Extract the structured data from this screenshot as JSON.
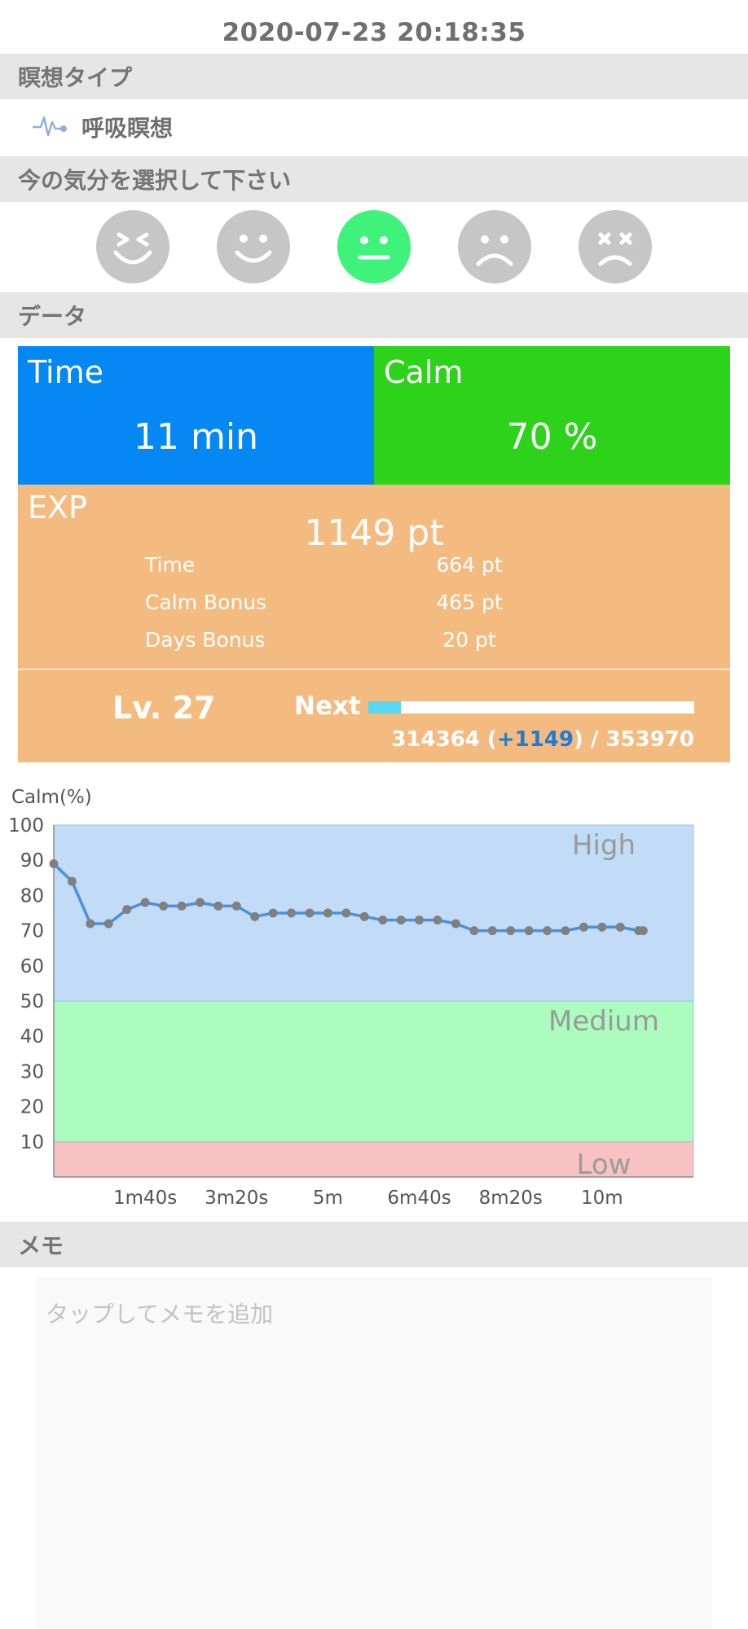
{
  "datetime": "2020-07-23 20:18:35",
  "sections": {
    "meditation_type": "瞑想タイプ",
    "mood": "今の気分を選択して下さい",
    "data": "データ",
    "memo": "メモ"
  },
  "meditation": {
    "label": "呼吸瞑想",
    "icon": "pulse-icon",
    "icon_color": "#8fb0de"
  },
  "moods": [
    {
      "name": "grinning-face",
      "selected": false
    },
    {
      "name": "smiling-face",
      "selected": false
    },
    {
      "name": "neutral-face",
      "selected": true
    },
    {
      "name": "sad-face",
      "selected": false
    },
    {
      "name": "dizzy-face",
      "selected": false
    }
  ],
  "stats": {
    "time": {
      "title": "Time",
      "value": "11 min",
      "color": "#0688f4"
    },
    "calm": {
      "title": "Calm",
      "value": "70 %",
      "color": "#2dd21a"
    }
  },
  "exp": {
    "title": "EXP",
    "total": "1149 pt",
    "rows": [
      {
        "label": "Time",
        "value": "664 pt"
      },
      {
        "label": "Calm Bonus",
        "value": "465 pt"
      },
      {
        "label": "Days Bonus",
        "value": "20 pt"
      }
    ],
    "color": "#f4bb80"
  },
  "level": {
    "label": "Lv. 27",
    "next_label": "Next",
    "progress_fraction": 0.1,
    "current": "314364 (",
    "gain": "+1149",
    "target": ") / 353970"
  },
  "chart_data": {
    "type": "line",
    "ylabel": "Calm(%)",
    "ylim": [
      0,
      100
    ],
    "yticks": [
      10,
      20,
      30,
      40,
      50,
      60,
      70,
      80,
      90,
      100
    ],
    "xlim": [
      0,
      700
    ],
    "xticks": [
      {
        "value": 100,
        "label": "1m40s"
      },
      {
        "value": 200,
        "label": "3m20s"
      },
      {
        "value": 300,
        "label": "5m"
      },
      {
        "value": 400,
        "label": "6m40s"
      },
      {
        "value": 500,
        "label": "8m20s"
      },
      {
        "value": 600,
        "label": "10m"
      }
    ],
    "bands": [
      {
        "name": "High",
        "from": 50,
        "to": 100,
        "color": "#c2dcf8"
      },
      {
        "name": "Medium",
        "from": 10,
        "to": 50,
        "color": "#acfbbf"
      },
      {
        "name": "Low",
        "from": 0,
        "to": 10,
        "color": "#f8c2c2"
      }
    ],
    "series": [
      {
        "color": "#4a90e2",
        "points": [
          [
            0,
            89
          ],
          [
            20,
            84
          ],
          [
            40,
            72
          ],
          [
            60,
            72
          ],
          [
            80,
            76
          ],
          [
            100,
            78
          ],
          [
            120,
            77
          ],
          [
            140,
            77
          ],
          [
            160,
            78
          ],
          [
            180,
            77
          ],
          [
            200,
            77
          ],
          [
            220,
            74
          ],
          [
            240,
            75
          ],
          [
            260,
            75
          ],
          [
            280,
            75
          ],
          [
            300,
            75
          ],
          [
            320,
            75
          ],
          [
            340,
            74
          ],
          [
            360,
            73
          ],
          [
            380,
            73
          ],
          [
            400,
            73
          ],
          [
            420,
            73
          ],
          [
            440,
            72
          ],
          [
            460,
            70
          ],
          [
            480,
            70
          ],
          [
            500,
            70
          ],
          [
            520,
            70
          ],
          [
            540,
            70
          ],
          [
            560,
            70
          ],
          [
            580,
            71
          ],
          [
            600,
            71
          ],
          [
            620,
            71
          ],
          [
            640,
            70
          ],
          [
            645,
            70
          ]
        ]
      }
    ]
  },
  "memo": {
    "placeholder": "タップしてメモを追加",
    "value": ""
  }
}
